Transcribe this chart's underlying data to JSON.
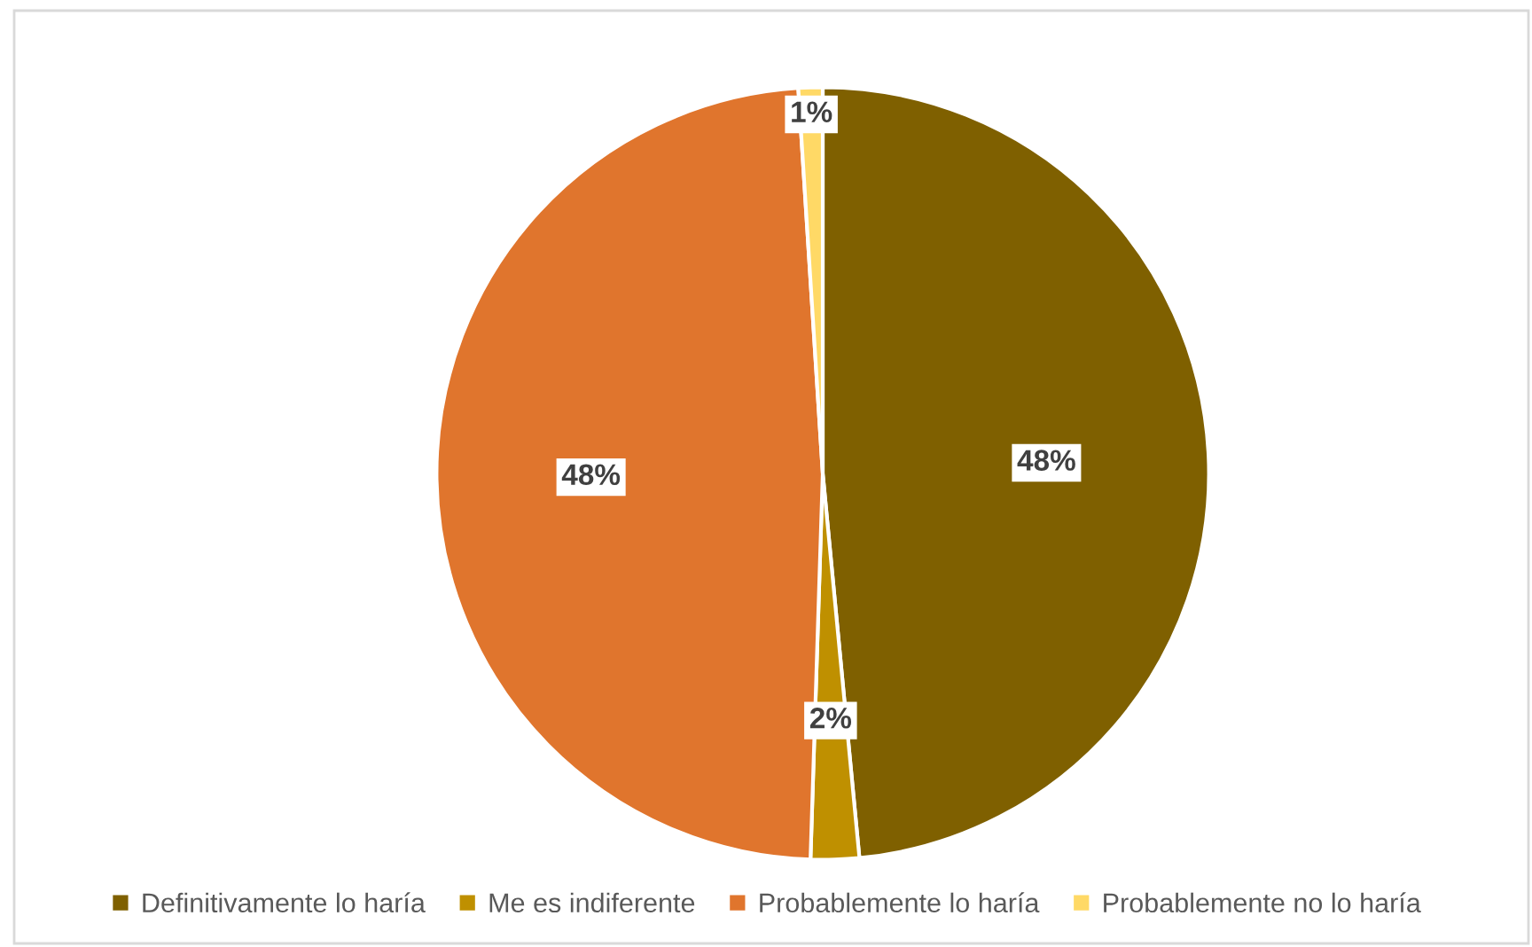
{
  "chart_data": {
    "type": "pie",
    "categories": [
      "Definitivamente lo haría",
      "Me es indiferente",
      "Probablemente lo haría",
      "Probablemente no lo haría"
    ],
    "values": [
      48,
      2,
      48,
      1
    ],
    "colors": [
      "#7f6000",
      "#bf9000",
      "#e0752d",
      "#ffd966"
    ],
    "value_labels": [
      "48%",
      "2%",
      "48%",
      "1%"
    ],
    "legend": "bottom"
  }
}
